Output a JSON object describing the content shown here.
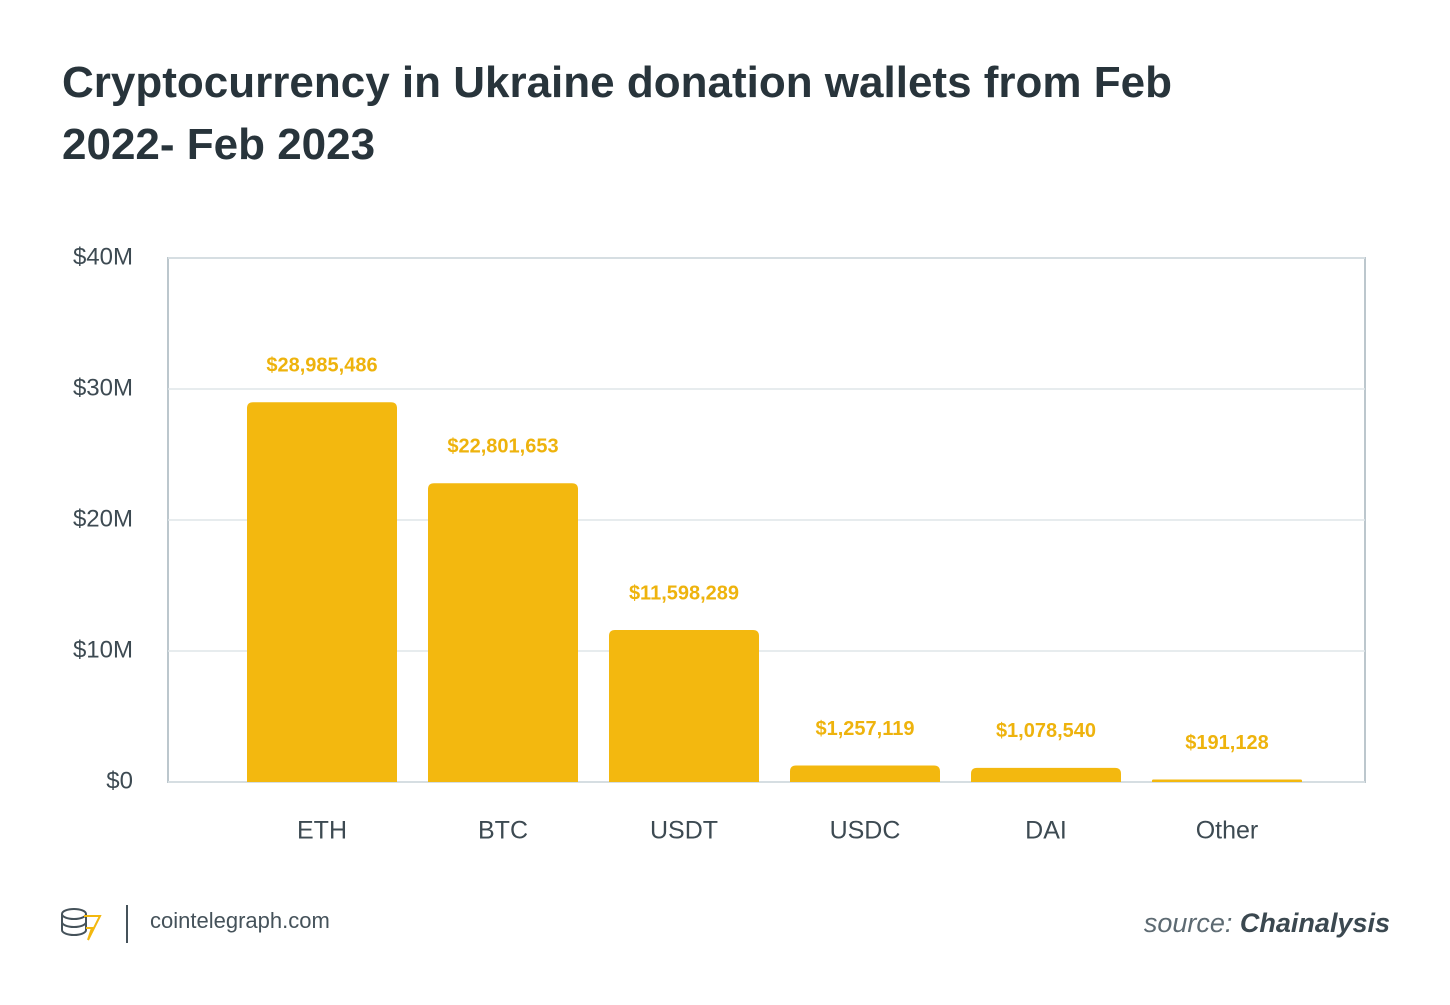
{
  "chart_data": {
    "type": "bar",
    "title": "Cryptocurrency in Ukraine donation wallets from Feb 2022- Feb 2023",
    "categories": [
      "ETH",
      "BTC",
      "USDT",
      "USDC",
      "DAI",
      "Other"
    ],
    "values": [
      28985486,
      22801653,
      11598289,
      1257119,
      1078540,
      191128
    ],
    "value_labels": [
      "$28,985,486",
      "$22,801,653",
      "$11,598,289",
      "$1,257,119",
      "$1,078,540",
      "$191,128"
    ],
    "color": "#f3b80f",
    "ylim": [
      0,
      40000000
    ],
    "yticks": [
      {
        "value": 0,
        "label": "$0"
      },
      {
        "value": 10000000,
        "label": "$10M"
      },
      {
        "value": 20000000,
        "label": "$20M"
      },
      {
        "value": 30000000,
        "label": "$30M"
      },
      {
        "value": 40000000,
        "label": "$40M"
      }
    ],
    "grid": true
  },
  "footer": {
    "site": "cointelegraph.com",
    "source_label": "source:",
    "source": "Chainalysis"
  }
}
